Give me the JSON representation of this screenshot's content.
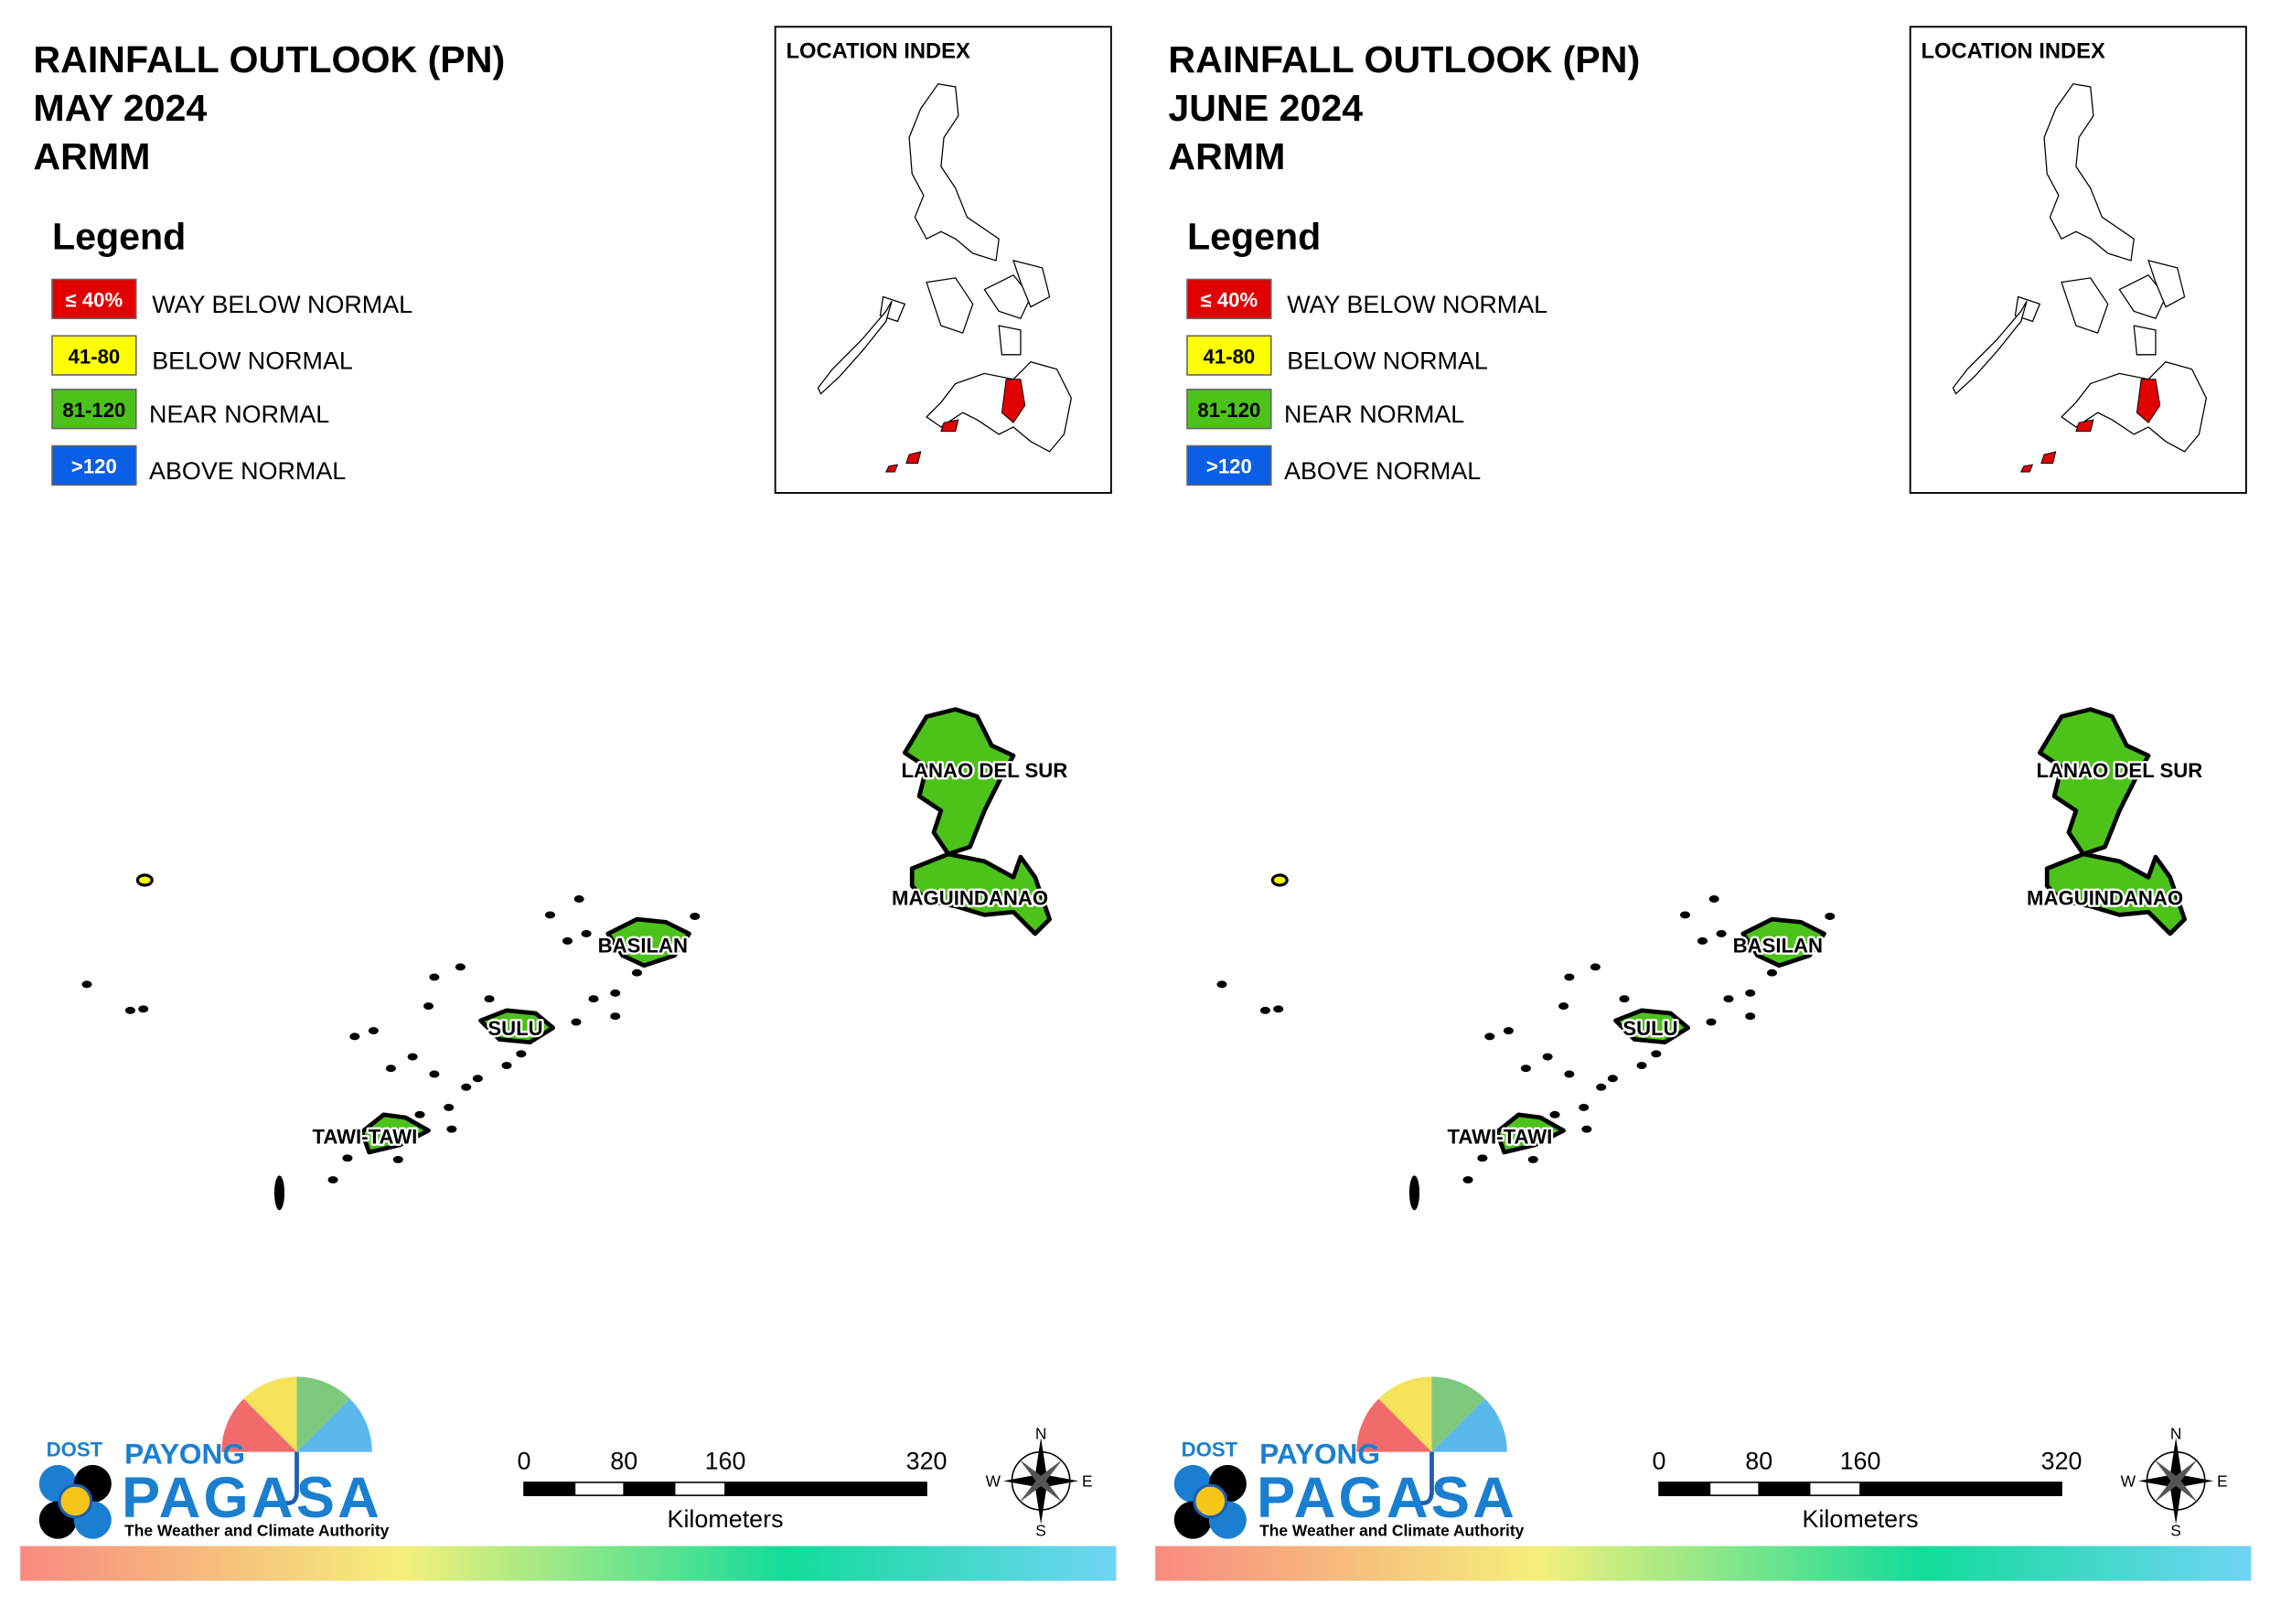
{
  "panels": [
    {
      "title": [
        "RAINFALL OUTLOOK (PN)",
        "MAY 2024",
        "ARMM"
      ],
      "legend": {
        "title": "Legend",
        "items": [
          {
            "swatch": "≤ 40%",
            "label": "WAY BELOW NORMAL",
            "color": "#e00000"
          },
          {
            "swatch": "41-80",
            "label": "BELOW NORMAL",
            "color": "#ffff00"
          },
          {
            "swatch": "81-120",
            "label": "NEAR NORMAL",
            "color": "#4cc21a"
          },
          {
            "swatch": ">120",
            "label": "ABOVE NORMAL",
            "color": "#0a5fe6"
          }
        ]
      },
      "location_index": "LOCATION INDEX",
      "places": [
        "LANAO DEL SUR",
        "MAGUINDANAO",
        "BASILAN",
        "SULU",
        "TAWI-TAWI"
      ],
      "scale": {
        "ticks": [
          "0",
          "80",
          "160",
          "320"
        ],
        "unit": "Kilometers"
      },
      "compass": [
        "N",
        "E",
        "S",
        "W"
      ],
      "logo": {
        "dost": "DOST",
        "payong": "PAYONG",
        "pagasa": "PAGASA",
        "tagline": "The Weather and Climate Authority"
      }
    },
    {
      "title": [
        "RAINFALL OUTLOOK (PN)",
        "JUNE 2024",
        "ARMM"
      ],
      "legend": {
        "title": "Legend",
        "items": [
          {
            "swatch": "≤ 40%",
            "label": "WAY BELOW NORMAL",
            "color": "#e00000"
          },
          {
            "swatch": "41-80",
            "label": "BELOW NORMAL",
            "color": "#ffff00"
          },
          {
            "swatch": "81-120",
            "label": "NEAR NORMAL",
            "color": "#4cc21a"
          },
          {
            "swatch": ">120",
            "label": "ABOVE NORMAL",
            "color": "#0a5fe6"
          }
        ]
      },
      "location_index": "LOCATION INDEX",
      "places": [
        "LANAO DEL SUR",
        "MAGUINDANAO",
        "BASILAN",
        "SULU",
        "TAWI-TAWI"
      ],
      "scale": {
        "ticks": [
          "0",
          "80",
          "160",
          "320"
        ],
        "unit": "Kilometers"
      },
      "compass": [
        "N",
        "E",
        "S",
        "W"
      ],
      "logo": {
        "dost": "DOST",
        "payong": "PAYONG",
        "pagasa": "PAGASA",
        "tagline": "The Weather and Climate Authority"
      }
    }
  ]
}
